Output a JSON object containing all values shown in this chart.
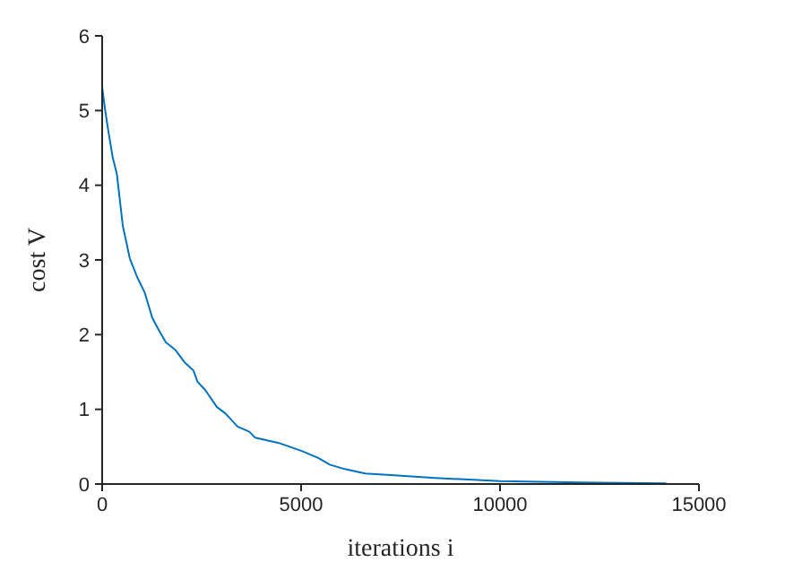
{
  "chart_data": {
    "type": "line",
    "xlabel": "iterations i",
    "ylabel": "cost V",
    "x": [
      0,
      74,
      148,
      266,
      370,
      518,
      695,
      888,
      1065,
      1257,
      1405,
      1598,
      1849,
      2071,
      2293,
      2396,
      2589,
      2885,
      3107,
      3402,
      3698,
      3846,
      4438,
      5030,
      5430,
      5720,
      6100,
      6610,
      7249,
      8370,
      10000,
      12000,
      14180
    ],
    "series": [
      {
        "color": "#0072bd",
        "values": [
          5.31,
          5.01,
          4.75,
          4.37,
          4.15,
          3.46,
          3.02,
          2.76,
          2.57,
          2.23,
          2.08,
          1.9,
          1.79,
          1.63,
          1.52,
          1.37,
          1.26,
          1.03,
          0.94,
          0.77,
          0.7,
          0.62,
          0.55,
          0.44,
          0.35,
          0.26,
          0.2,
          0.14,
          0.12,
          0.08,
          0.04,
          0.02,
          0.01
        ]
      }
    ],
    "xlim": [
      0,
      15000
    ],
    "xticks": [
      0,
      5000,
      10000,
      15000
    ],
    "ylim": [
      0,
      6
    ],
    "yticks": [
      0,
      1,
      2,
      3,
      4,
      5,
      6
    ],
    "grid": false,
    "legend": false,
    "marker": "none",
    "line_style": "solid"
  }
}
